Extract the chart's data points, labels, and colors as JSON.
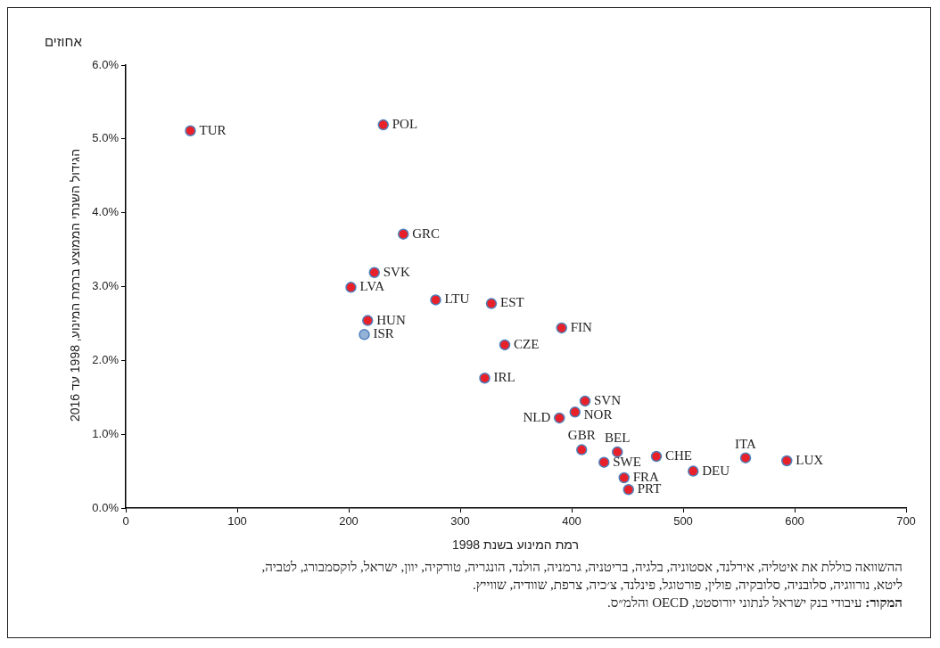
{
  "chart_data": {
    "type": "scatter",
    "subtitle": "אחוזים",
    "ylabel": "הגידול השנתי הממוצע ברמת המינוע, 1998 עד 2016",
    "xlabel": "רמת המינוע בשנת 1998",
    "annotations": [
      "ההשוואה כוללת את איטליה, אירלנד, אסטוניה, בלגיה, בריטניה, גרמניה, הולנד, הונגריה, טורקיה, יוון, ישראל, לוקסמבורג, לטביה, ליטא, נורווגיה, סלובניה, סלובקיה, פולין, פורטוגל, פינלנד, צ׳כיה, צרפת, שוודיה, שווייץ.",
      "המקור: עיבודי בנק ישראל לנתוני יורוסטט, OECD והלמ״ס."
    ],
    "xlim": [
      0,
      700
    ],
    "xticks": [
      0,
      100,
      200,
      300,
      400,
      500,
      600,
      700
    ],
    "ylim": [
      0,
      6
    ],
    "yticks": [
      {
        "value": 0,
        "label": "0.0%"
      },
      {
        "value": 1,
        "label": "1.0%"
      },
      {
        "value": 2,
        "label": "2.0%"
      },
      {
        "value": 3,
        "label": "3.0%"
      },
      {
        "value": 4,
        "label": "4.0%"
      },
      {
        "value": 5,
        "label": "5.0%"
      },
      {
        "value": 6,
        "label": "6.0%"
      }
    ],
    "grid": false,
    "legend": false,
    "marker": "circle",
    "series": [
      {
        "name": "TUR",
        "color": "#e8202a",
        "x": [
          58
        ],
        "values": [
          5.11
        ]
      },
      {
        "name": "POL",
        "color": "#e8202a",
        "x": [
          231
        ],
        "values": [
          5.19
        ]
      },
      {
        "name": "GRC",
        "color": "#e8202a",
        "x": [
          249
        ],
        "values": [
          3.71
        ]
      },
      {
        "name": "SVK",
        "color": "#e8202a",
        "x": [
          223
        ],
        "values": [
          3.19
        ]
      },
      {
        "name": "LVA",
        "color": "#e8202a",
        "x": [
          202
        ],
        "values": [
          2.99
        ]
      },
      {
        "name": "HUN",
        "color": "#e8202a",
        "x": [
          217
        ],
        "values": [
          2.54
        ]
      },
      {
        "name": "ISR",
        "color": "#95b3d7",
        "x": [
          214
        ],
        "values": [
          2.35
        ]
      },
      {
        "name": "LTU",
        "color": "#e8202a",
        "x": [
          278
        ],
        "values": [
          2.82
        ]
      },
      {
        "name": "EST",
        "color": "#e8202a",
        "x": [
          328
        ],
        "values": [
          2.77
        ]
      },
      {
        "name": "CZE",
        "color": "#e8202a",
        "x": [
          340
        ],
        "values": [
          2.21
        ]
      },
      {
        "name": "IRL",
        "color": "#e8202a",
        "x": [
          322
        ],
        "values": [
          1.76
        ]
      },
      {
        "name": "FIN",
        "color": "#e8202a",
        "x": [
          391
        ],
        "values": [
          2.44
        ]
      },
      {
        "name": "SVN",
        "color": "#e8202a",
        "x": [
          412
        ],
        "values": [
          1.45
        ]
      },
      {
        "name": "NOR",
        "color": "#e8202a",
        "x": [
          403
        ],
        "values": [
          1.3
        ]
      },
      {
        "name": "NLD",
        "color": "#e8202a",
        "x": [
          389
        ],
        "values": [
          1.22
        ]
      },
      {
        "name": "GBR",
        "color": "#e8202a",
        "x": [
          409
        ],
        "values": [
          0.79
        ]
      },
      {
        "name": "BEL",
        "color": "#e8202a",
        "x": [
          441
        ],
        "values": [
          0.76
        ]
      },
      {
        "name": "SWE",
        "color": "#e8202a",
        "x": [
          429
        ],
        "values": [
          0.62
        ]
      },
      {
        "name": "CHE",
        "color": "#e8202a",
        "x": [
          476
        ],
        "values": [
          0.7
        ]
      },
      {
        "name": "DEU",
        "color": "#e8202a",
        "x": [
          509
        ],
        "values": [
          0.5
        ]
      },
      {
        "name": "FRA",
        "color": "#e8202a",
        "x": [
          447
        ],
        "values": [
          0.41
        ]
      },
      {
        "name": "PRT",
        "color": "#e8202a",
        "x": [
          451
        ],
        "values": [
          0.25
        ]
      },
      {
        "name": "ITA",
        "color": "#e8202a",
        "x": [
          556
        ],
        "values": [
          0.68
        ]
      },
      {
        "name": "LUX",
        "color": "#e8202a",
        "x": [
          593
        ],
        "values": [
          0.64
        ]
      }
    ]
  }
}
